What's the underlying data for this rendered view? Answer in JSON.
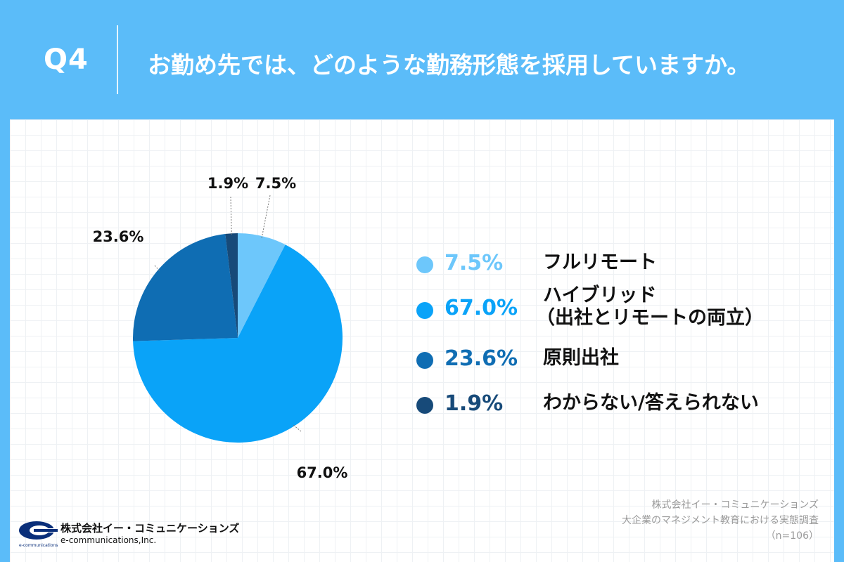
{
  "header": {
    "question_number": "Q4",
    "question_text": "お勤め先では、どのような勤務形態を採用していますか。"
  },
  "colors": {
    "header_bg": "#5bbcf9",
    "full_remote": "#6dc7fb",
    "hybrid": "#0aa3f8",
    "office": "#0f6db3",
    "unknown": "#174a79"
  },
  "chart_data": {
    "type": "pie",
    "slices": [
      {
        "label": "フルリモート",
        "value": 7.5,
        "display": "7.5%"
      },
      {
        "label": "ハイブリッド（出社とリモートの両立）",
        "value": 67.0,
        "display": "67.0%"
      },
      {
        "label": "原則出社",
        "value": 23.6,
        "display": "23.6%"
      },
      {
        "label": "わからない/答えられない",
        "value": 1.9,
        "display": "1.9%"
      }
    ],
    "start": "12 o'clock",
    "direction": "clockwise",
    "legend_position": "right"
  },
  "legend": [
    {
      "pct": "7.5%",
      "label_lines": [
        "フルリモート"
      ]
    },
    {
      "pct": "67.0%",
      "label_lines": [
        "ハイブリッド",
        "（出社とリモートの両立）"
      ]
    },
    {
      "pct": "23.6%",
      "label_lines": [
        "原則出社"
      ]
    },
    {
      "pct": "1.9%",
      "label_lines": [
        "わからない/答えられない"
      ]
    }
  ],
  "footer": {
    "company": "株式会社イー・コミュニケーションズ",
    "survey": "大企業のマネジメント教育における実態調査",
    "sample": "（n=106）"
  },
  "logo": {
    "name": "株式会社イー・コミュニケーションズ",
    "english": "e-communications,Inc.",
    "mark_text": "e-communications"
  }
}
